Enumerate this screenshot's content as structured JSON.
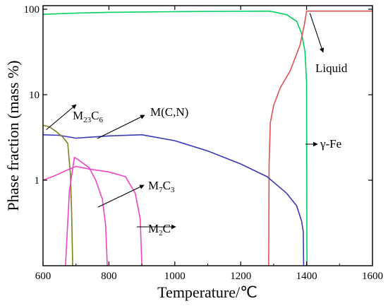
{
  "chart_data": {
    "type": "line",
    "xlabel": "Temperature/℃",
    "ylabel": "Phase fraction (mass %)",
    "x_scale": "linear",
    "y_scale": "log",
    "xlim": [
      600,
      1600
    ],
    "ylim": [
      0.1,
      110
    ],
    "x_ticks": [
      600,
      800,
      1000,
      1200,
      1400,
      1600
    ],
    "y_ticks": [
      1,
      10,
      100
    ],
    "x_tick_labels": [
      "600",
      "800",
      "1000",
      "1200",
      "1400",
      "1600"
    ],
    "y_tick_labels": [
      "1",
      "10",
      "100"
    ],
    "grid": false,
    "legend": "none",
    "series": [
      {
        "color": "#00d060",
        "points": [
          [
            600,
            87
          ],
          [
            700,
            90
          ],
          [
            800,
            92
          ],
          [
            1000,
            93.5
          ],
          [
            1200,
            94.5
          ],
          [
            1285,
            95
          ],
          [
            1300,
            93
          ],
          [
            1340,
            86
          ],
          [
            1370,
            72
          ],
          [
            1385,
            52
          ],
          [
            1395,
            32
          ],
          [
            1400,
            14
          ],
          [
            1401,
            0.1
          ]
        ]
      },
      {
        "color": "#e05050",
        "points": [
          [
            1285,
            0.1
          ],
          [
            1286,
            1.5
          ],
          [
            1290,
            4.7
          ],
          [
            1300,
            7.5
          ],
          [
            1320,
            12
          ],
          [
            1350,
            19
          ],
          [
            1380,
            38
          ],
          [
            1393,
            65
          ],
          [
            1400,
            95
          ],
          [
            1600,
            95
          ]
        ]
      },
      {
        "color": "#3838b8",
        "points": [
          [
            600,
            3.4
          ],
          [
            650,
            3.35
          ],
          [
            700,
            3.1
          ],
          [
            800,
            3.3
          ],
          [
            900,
            3.4
          ],
          [
            1000,
            2.9
          ],
          [
            1100,
            2.2
          ],
          [
            1200,
            1.55
          ],
          [
            1280,
            1.1
          ],
          [
            1340,
            0.7
          ],
          [
            1370,
            0.5
          ],
          [
            1385,
            0.33
          ],
          [
            1390,
            0.25
          ],
          [
            1391,
            0.1
          ]
        ]
      },
      {
        "color": "#808020",
        "points": [
          [
            600,
            4.4
          ],
          [
            620,
            4.2
          ],
          [
            640,
            3.7
          ],
          [
            660,
            3.2
          ],
          [
            675,
            2.7
          ],
          [
            683,
            1.2
          ],
          [
            687,
            0.4
          ],
          [
            690,
            0.1
          ]
        ]
      },
      {
        "color": "#ee44c4",
        "points": [
          [
            600,
            1.0
          ],
          [
            640,
            1.15
          ],
          [
            680,
            1.35
          ],
          [
            700,
            1.45
          ],
          [
            740,
            1.35
          ],
          [
            800,
            1.25
          ],
          [
            850,
            1.1
          ],
          [
            880,
            0.7
          ],
          [
            895,
            0.35
          ],
          [
            900,
            0.1
          ]
        ]
      },
      {
        "color": "#ee44c4",
        "points": [
          [
            668,
            0.1
          ],
          [
            680,
            0.75
          ],
          [
            695,
            1.85
          ],
          [
            710,
            1.7
          ],
          [
            740,
            1.4
          ],
          [
            760,
            1.0
          ],
          [
            780,
            0.6
          ],
          [
            790,
            0.3
          ],
          [
            795,
            0.1
          ]
        ]
      }
    ],
    "annotations": [
      {
        "text": "Liquid",
        "sub": "",
        "tail": "",
        "target": [
          1410,
          90
        ]
      },
      {
        "text": "γ-Fe",
        "sub": "",
        "tail": "",
        "target": [
          1402,
          4.0
        ]
      },
      {
        "text": "M(C,N)",
        "sub": "",
        "tail": "",
        "target": [
          790,
          3.3
        ]
      },
      {
        "text": "M",
        "sub": "23",
        "tail": "C",
        "sub2": "6",
        "target": [
          610,
          3.9
        ]
      },
      {
        "text": "M",
        "sub": "7",
        "tail": "C",
        "sub2": "3",
        "target": [
          773,
          0.6
        ]
      },
      {
        "text": "M",
        "sub": "2",
        "tail": "C",
        "sub2": "",
        "target": [
          893,
          0.2
        ]
      }
    ]
  }
}
